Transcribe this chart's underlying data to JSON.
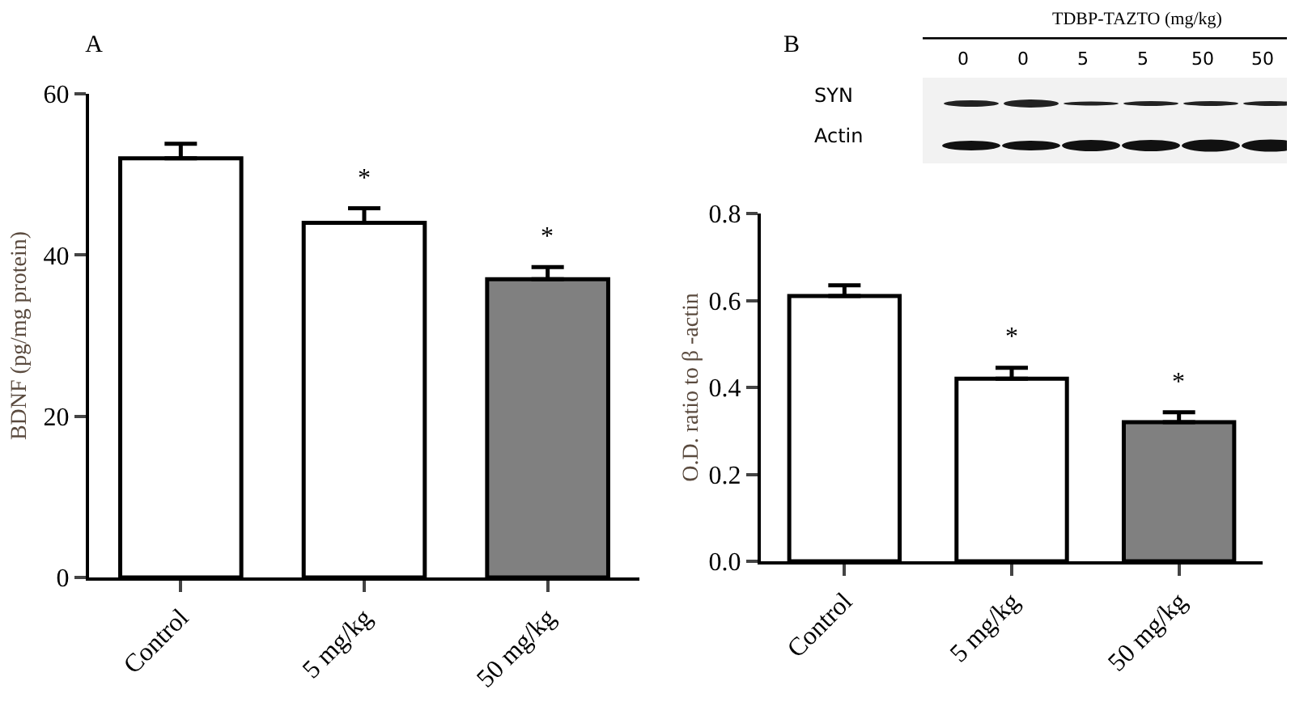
{
  "chart_data": [
    {
      "type": "bar",
      "title": "A",
      "ylabel": "BDNF (pg/mg protein)",
      "categories": [
        "Control",
        "5 mg/kg",
        "50 mg/kg"
      ],
      "values": [
        52,
        44,
        37
      ],
      "colors": [
        "#ffffff",
        "#ffffff",
        "#808080"
      ],
      "errors": [
        [
          52,
          53.8
        ],
        [
          44,
          45.8
        ],
        [
          37,
          38.5
        ]
      ],
      "ylim": [
        0,
        60
      ],
      "yticks": [
        0,
        20,
        40,
        60
      ],
      "grid": false,
      "legend": false,
      "annotations": [
        "*",
        "*"
      ]
    },
    {
      "type": "bar",
      "title": "B",
      "ylabel": "O.D. ratio to β -actin",
      "categories": [
        "Control",
        "5 mg/kg",
        "50 mg/kg"
      ],
      "values": [
        0.61,
        0.42,
        0.32
      ],
      "colors": [
        "#ffffff",
        "#ffffff",
        "#808080"
      ],
      "errors": [
        [
          0.61,
          0.635
        ],
        [
          0.42,
          0.445
        ],
        [
          0.32,
          0.343
        ]
      ],
      "ylim": [
        0,
        0.8
      ],
      "yticks": [
        {
          "value": 0,
          "label": "0.0"
        },
        0.2,
        0.4,
        0.6,
        0.8
      ],
      "grid": false,
      "legend": false,
      "annotations": [
        "TDBP-TAZTO (mg/kg)",
        "0",
        "0",
        "5",
        "5",
        "50",
        "50",
        "SYN",
        "Actin",
        "*",
        "*"
      ]
    }
  ]
}
